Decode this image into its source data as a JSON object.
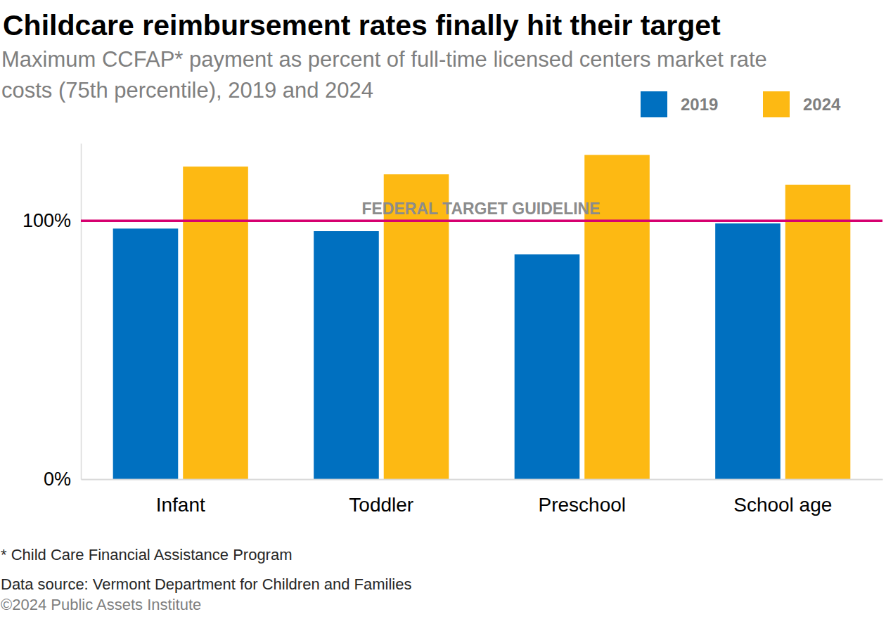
{
  "chart_data": {
    "type": "bar",
    "title": "Childcare reimbursement rates finally hit their target",
    "subtitle": "Maximum CCFAP* payment as percent of full-time licensed centers market rate costs (75th percentile), 2019 and 2024",
    "categories": [
      "Infant",
      "Toddler",
      "Preschool",
      "School age"
    ],
    "series": [
      {
        "name": "2019",
        "color": "#0070C0",
        "values": [
          97,
          96,
          87,
          99
        ]
      },
      {
        "name": "2024",
        "color": "#FDB913",
        "values": [
          121,
          118,
          125.5,
          114
        ]
      }
    ],
    "ylim": [
      0,
      130
    ],
    "yticks": [
      {
        "value": 0,
        "label": "0%"
      },
      {
        "value": 100,
        "label": "100%"
      }
    ],
    "grid": false,
    "legend": "top-right",
    "annotations": [
      {
        "text": "FEDERAL TARGET GUIDELINE",
        "y": 100
      }
    ],
    "notes": [
      "* Child Care Financial Assistance Program",
      "Data source: Vermont Department for Children and Families",
      "©2024 Public Assets Institute"
    ]
  }
}
